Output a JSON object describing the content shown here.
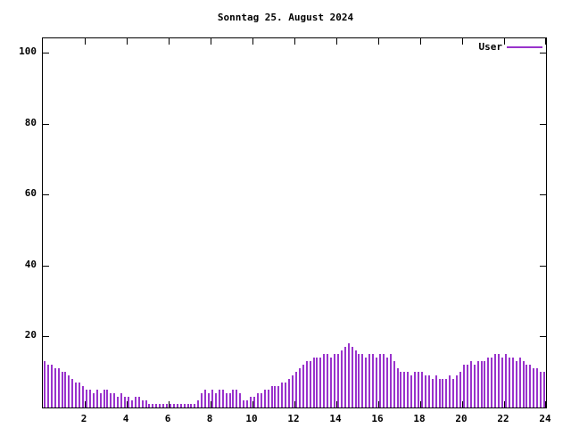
{
  "title": "Sonntag 25. August 2024",
  "legend": {
    "label": "User"
  },
  "colors": {
    "series": "#9933cc",
    "axis": "#000000",
    "background": "#ffffff"
  },
  "chart_data": {
    "type": "bar",
    "title": "Sonntag 25. August 2024",
    "xlabel": "",
    "ylabel": "",
    "xlim": [
      0,
      24
    ],
    "ylim": [
      0,
      104
    ],
    "x_ticks": [
      2,
      4,
      6,
      8,
      10,
      12,
      14,
      16,
      18,
      20,
      22,
      24
    ],
    "y_ticks": [
      20,
      40,
      60,
      80,
      100
    ],
    "grid": false,
    "legend_position": "top-right",
    "x_unit": "hour-of-day",
    "sample_interval_minutes": 10,
    "series": [
      {
        "name": "User",
        "color": "#9933cc",
        "values": [
          13,
          12,
          12,
          11,
          11,
          10,
          10,
          9,
          8,
          7,
          7,
          6,
          5,
          5,
          4,
          5,
          4,
          5,
          5,
          4,
          4,
          3,
          4,
          3,
          3,
          2,
          3,
          3,
          2,
          2,
          1,
          1,
          1,
          1,
          1,
          1,
          1,
          1,
          1,
          1,
          1,
          1,
          1,
          1,
          2,
          4,
          5,
          4,
          5,
          4,
          5,
          5,
          4,
          4,
          5,
          5,
          4,
          2,
          2,
          3,
          3,
          4,
          4,
          5,
          5,
          6,
          6,
          6,
          7,
          7,
          8,
          9,
          10,
          11,
          12,
          13,
          13,
          14,
          14,
          14,
          15,
          15,
          14,
          15,
          15,
          16,
          17,
          18,
          17,
          16,
          15,
          15,
          14,
          15,
          15,
          14,
          15,
          15,
          14,
          15,
          13,
          11,
          10,
          10,
          10,
          9,
          10,
          10,
          10,
          9,
          9,
          8,
          9,
          8,
          8,
          8,
          9,
          8,
          9,
          10,
          12,
          12,
          13,
          12,
          13,
          13,
          13,
          14,
          14,
          15,
          15,
          14,
          15,
          14,
          14,
          13,
          14,
          13,
          12,
          12,
          11,
          11,
          10,
          10
        ]
      }
    ]
  }
}
